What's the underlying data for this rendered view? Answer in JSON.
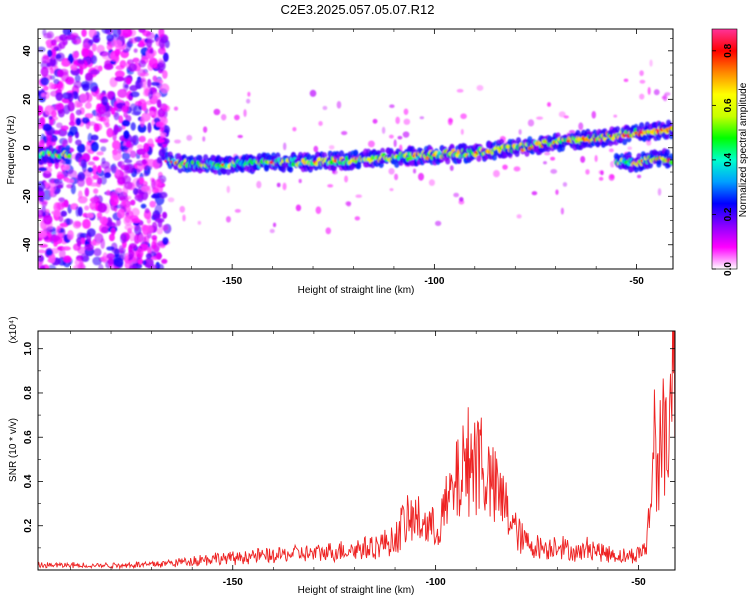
{
  "title": "C2E3.2025.057.05.07.R12",
  "colorbar": {
    "label": "Normalized spectral amplitude",
    "ticks": [
      "0.0",
      "0.2",
      "0.4",
      "0.6",
      "0.8"
    ],
    "tick_values": [
      0,
      0.2,
      0.4,
      0.6,
      0.8
    ],
    "range": [
      0,
      0.88
    ],
    "colors": [
      "#ffffff",
      "#ff00ff",
      "#8800ff",
      "#0000ff",
      "#00a0ff",
      "#00ffcc",
      "#00ff00",
      "#c8ff00",
      "#ffff00",
      "#ff8800",
      "#ff0000",
      "#ff3399"
    ]
  },
  "chart_data": [
    {
      "type": "heatmap",
      "xlabel": "Height of straight line (km)",
      "ylabel": "Frequency (Hz)",
      "xlim": [
        -198,
        -41
      ],
      "ylim": [
        -50,
        49
      ],
      "xticks": [
        -150,
        -100,
        -50
      ],
      "xtick_labels": [
        "-150",
        "-100",
        "-50"
      ],
      "yticks": [
        -40,
        -20,
        0,
        20,
        40
      ],
      "ytick_labels": [
        "-40",
        "-20",
        "0",
        "20",
        "40"
      ],
      "colormap": "rainbow",
      "trace": {
        "description": "Main spectral line",
        "x": [
          -198,
          -190,
          -180,
          -168,
          -160,
          -150,
          -140,
          -130,
          -120,
          -110,
          -100,
          -90,
          -80,
          -70,
          -60,
          -50,
          -41
        ],
        "y": [
          -3,
          -3,
          -4,
          -5,
          -7,
          -7,
          -6,
          -6,
          -5,
          -4,
          -3,
          -2,
          0,
          2,
          4,
          6,
          8
        ]
      },
      "secondary_trace": {
        "x": [
          -55,
          -50,
          -45,
          -41
        ],
        "y": [
          -6,
          -6,
          -4,
          -5
        ]
      },
      "noise_region_x": [
        -198,
        -166
      ]
    },
    {
      "type": "line",
      "xlabel": "Height of straight line (km)",
      "ylabel": "SNR (10 * v/v)",
      "y_multiplier": "(x10⁴)",
      "xlim": [
        -198,
        -41
      ],
      "ylim": [
        0,
        1.08
      ],
      "xticks": [
        -150,
        -100,
        -50
      ],
      "xtick_labels": [
        "-150",
        "-100",
        "-50"
      ],
      "yticks": [
        0.2,
        0.4,
        0.6,
        0.8,
        1.0
      ],
      "ytick_labels": [
        "0.2",
        "0.4",
        "0.6",
        "0.8",
        "1.0"
      ],
      "color": "#ee2222",
      "series": [
        {
          "x": [
            -198,
            -190,
            -180,
            -170,
            -165,
            -160,
            -155,
            -150,
            -145,
            -140,
            -135,
            -130,
            -125,
            -120,
            -115,
            -110,
            -108,
            -105,
            -100,
            -97,
            -95,
            -93,
            -91,
            -90,
            -89,
            -87,
            -85,
            -83,
            -80,
            -78,
            -75,
            -72,
            -70,
            -68,
            -65,
            -62,
            -60,
            -57,
            -55,
            -52,
            -50,
            -48,
            -47,
            -46,
            -45,
            -44,
            -43,
            -42,
            -41
          ],
          "y": [
            0.02,
            0.02,
            0.02,
            0.025,
            0.03,
            0.04,
            0.05,
            0.05,
            0.06,
            0.06,
            0.07,
            0.07,
            0.08,
            0.09,
            0.1,
            0.13,
            0.2,
            0.22,
            0.17,
            0.28,
            0.36,
            0.44,
            0.5,
            0.45,
            0.51,
            0.38,
            0.33,
            0.28,
            0.16,
            0.12,
            0.1,
            0.09,
            0.12,
            0.09,
            0.07,
            0.1,
            0.08,
            0.07,
            0.06,
            0.06,
            0.07,
            0.1,
            0.3,
            0.6,
            0.45,
            0.55,
            0.64,
            0.7,
            1.08
          ]
        }
      ]
    }
  ]
}
